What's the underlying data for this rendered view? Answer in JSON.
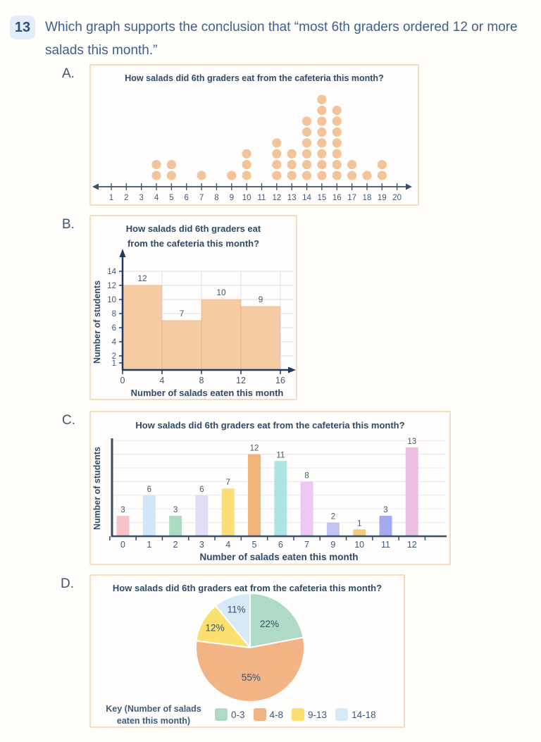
{
  "question": {
    "number": "13",
    "text": "Which graph supports the conclusion that “most 6th graders ordered 12 or more salads this month.”"
  },
  "options": [
    {
      "letter": "A."
    },
    {
      "letter": "B."
    },
    {
      "letter": "C."
    },
    {
      "letter": "D."
    }
  ],
  "chart_data": [
    {
      "type": "dot_plot",
      "option": "A",
      "title": "How salads did 6th graders eat from the cafeteria this month?",
      "x": [
        "1",
        "2",
        "3",
        "4",
        "5",
        "6",
        "7",
        "8",
        "9",
        "10",
        "11",
        "12",
        "13",
        "14",
        "15",
        "16",
        "17",
        "18",
        "19",
        "20"
      ],
      "counts": [
        0,
        0,
        0,
        2,
        2,
        0,
        1,
        0,
        1,
        3,
        0,
        4,
        3,
        6,
        8,
        7,
        2,
        1,
        2,
        0
      ],
      "xlim": [
        1,
        20
      ],
      "dot_color": "#f3c49b",
      "axis_color": "#3c4f63"
    },
    {
      "type": "histogram",
      "option": "B",
      "title_lines": [
        "How salads did 6th graders eat",
        "from the cafeteria this month?"
      ],
      "xlabel": "Number of salads eaten this month",
      "ylabel": "Number of students",
      "bins": [
        "0-4",
        "4-8",
        "8-12",
        "12-16"
      ],
      "values": [
        12,
        7,
        10,
        9
      ],
      "x_ticks": [
        0,
        4,
        8,
        12,
        16
      ],
      "y_ticks": [
        14,
        12,
        10,
        8,
        6,
        4,
        2,
        1
      ],
      "ylim": [
        0,
        15
      ],
      "grid": true,
      "bar_color": "#f6cba3",
      "bar_border": "#ecbd93",
      "axis_color": "#1f3a5f"
    },
    {
      "type": "bar",
      "option": "C",
      "title": "How salads did 6th graders eat from the cafeteria this month?",
      "xlabel": "Number of salads eaten this month",
      "ylabel": "Number of students",
      "categories": [
        "0",
        "1",
        "2",
        "3",
        "4",
        "5",
        "6",
        "7",
        "9",
        "10",
        "11",
        "12"
      ],
      "values": [
        3,
        6,
        3,
        6,
        7,
        12,
        11,
        8,
        2,
        1,
        3,
        13
      ],
      "bar_colors": [
        "#f6c3cd",
        "#cfe7f7",
        "#abdcc3",
        "#e2dcf9",
        "#fbdf76",
        "#f1b377",
        "#abe4e0",
        "#eec7f4",
        "#c3c4f4",
        "#f1cc7c",
        "#a3aaf0",
        "#eabfdf"
      ],
      "ylim": [
        0,
        14
      ],
      "grid": true,
      "axis_color": "#3a4c63"
    },
    {
      "type": "pie",
      "option": "D",
      "title": "How salads did 6th graders eat from the cafeteria this month?",
      "key_label": "Key (Number of salads eaten this month)",
      "slices": [
        {
          "label": "0-3",
          "pct": 22,
          "color": "#aedbc6"
        },
        {
          "label": "4-8",
          "pct": 55,
          "color": "#f2b385"
        },
        {
          "label": "9-13",
          "pct": 12,
          "color": "#fbe070"
        },
        {
          "label": "14-18",
          "pct": 11,
          "color": "#d6e9f7"
        }
      ],
      "label_color": "#3a4f6b"
    }
  ]
}
